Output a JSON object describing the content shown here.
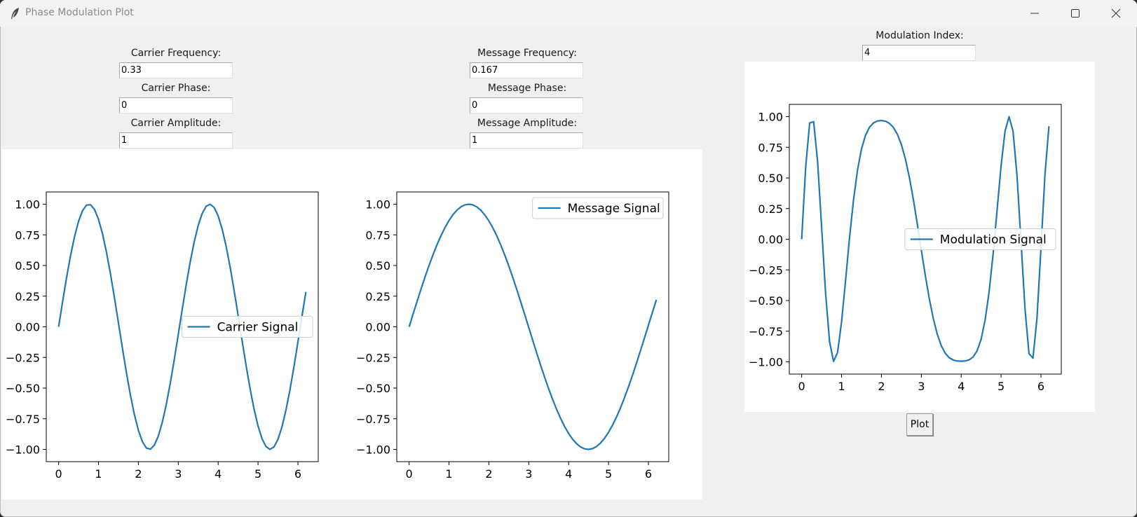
{
  "window": {
    "title": "Phase Modulation Plot",
    "icon": "feather-icon",
    "controls": [
      "minimize-icon",
      "maximize-icon",
      "close-icon"
    ]
  },
  "inputs": {
    "carrier_frequency": {
      "label": "Carrier Frequency:",
      "value": "0.33"
    },
    "carrier_phase": {
      "label": "Carrier Phase:",
      "value": "0"
    },
    "carrier_amplitude": {
      "label": "Carrier Amplitude:",
      "value": "1"
    },
    "message_frequency": {
      "label": "Message Frequency:",
      "value": "0.167"
    },
    "message_phase": {
      "label": "Message Phase:",
      "value": "0"
    },
    "message_amplitude": {
      "label": "Message Amplitude:",
      "value": "1"
    },
    "modulation_index": {
      "label": "Modulation Index:",
      "value": "4"
    }
  },
  "plot_button": {
    "label": "Plot"
  },
  "colors": {
    "series": "#1f77b4"
  },
  "chart_data": [
    {
      "type": "line",
      "series": [
        {
          "name": "Carrier Signal",
          "function": "sin(2*pi*0.33*x)"
        }
      ],
      "x_range": [
        0,
        6.2
      ],
      "x_step": 0.1,
      "xticks": [
        0,
        1,
        2,
        3,
        4,
        5,
        6
      ],
      "yticks": [
        -1.0,
        -0.75,
        -0.5,
        -0.25,
        0.0,
        0.25,
        0.5,
        0.75,
        1.0
      ],
      "ylim": [
        -1.1,
        1.1
      ],
      "xlim": [
        -0.31,
        6.51
      ],
      "legend": "center-right"
    },
    {
      "type": "line",
      "series": [
        {
          "name": "Message Signal",
          "function": "sin(2*pi*0.167*x)"
        }
      ],
      "x_range": [
        0,
        6.2
      ],
      "x_step": 0.1,
      "xticks": [
        0,
        1,
        2,
        3,
        4,
        5,
        6
      ],
      "yticks": [
        -1.0,
        -0.75,
        -0.5,
        -0.25,
        0.0,
        0.25,
        0.5,
        0.75,
        1.0
      ],
      "ylim": [
        -1.1,
        1.1
      ],
      "xlim": [
        -0.31,
        6.51
      ],
      "legend": "upper-right"
    },
    {
      "type": "line",
      "series": [
        {
          "name": "Modulation Signal",
          "function": "sin(2*pi*0.33*x + 4*sin(2*pi*0.167*x))"
        }
      ],
      "x_range": [
        0,
        6.2
      ],
      "x_step": 0.1,
      "xticks": [
        0,
        1,
        2,
        3,
        4,
        5,
        6
      ],
      "yticks": [
        -1.0,
        -0.75,
        -0.5,
        -0.25,
        0.0,
        0.25,
        0.5,
        0.75,
        1.0
      ],
      "ylim": [
        -1.1,
        1.1
      ],
      "xlim": [
        -0.31,
        6.51
      ],
      "legend": "center-right"
    }
  ]
}
